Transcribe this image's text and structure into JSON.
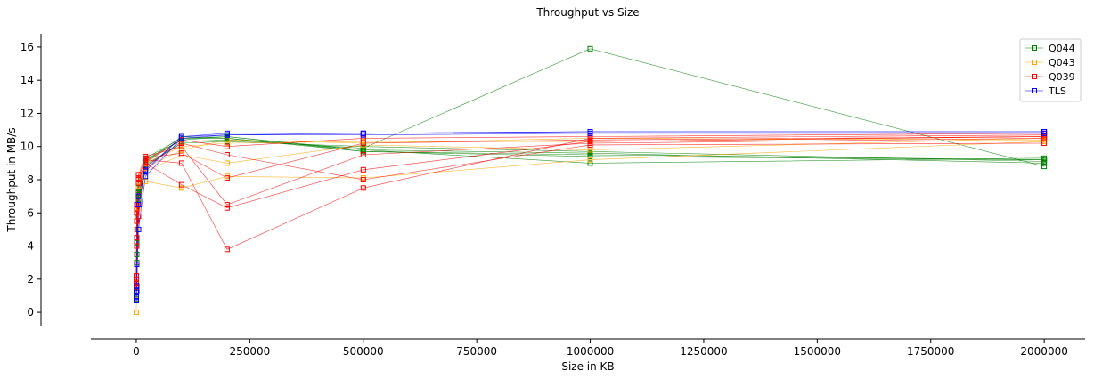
{
  "chart_data": {
    "type": "line",
    "title": "Throughput vs Size",
    "xlabel": "Size in KB",
    "ylabel": "Throughput in MB/s",
    "xlim": [
      -100000,
      2090000
    ],
    "ylim": [
      -0.8,
      16.8
    ],
    "x_ticks": [
      0,
      250000,
      500000,
      750000,
      1000000,
      1250000,
      1500000,
      1750000,
      2000000
    ],
    "x_tick_labels": [
      "0",
      "250000",
      "500000",
      "750000",
      "1000000",
      "1250000",
      "1500000",
      "1750000",
      "2000000"
    ],
    "y_ticks": [
      0,
      2,
      4,
      6,
      8,
      10,
      12,
      14,
      16
    ],
    "y_tick_labels": [
      "0",
      "2",
      "4",
      "6",
      "8",
      "10",
      "12",
      "14",
      "16"
    ],
    "grid": false,
    "legend_position": "top-right",
    "x": [
      10,
      1000,
      5000,
      20000,
      100000,
      200000,
      500000,
      1000000,
      2000000
    ],
    "series": [
      {
        "name": "Q044",
        "color": "#008000",
        "marker": "square",
        "runs": [
          [
            0.9,
            3.0,
            6.5,
            9.0,
            10.5,
            10.5,
            9.7,
            9.4,
            9.2
          ],
          [
            1.2,
            4.5,
            7.0,
            9.2,
            10.4,
            10.6,
            9.8,
            9.6,
            9.0
          ],
          [
            1.5,
            5.0,
            7.5,
            8.8,
            10.3,
            10.4,
            9.9,
            15.9,
            8.8
          ],
          [
            1.0,
            4.0,
            7.2,
            9.1,
            10.6,
            10.5,
            9.8,
            9.0,
            9.3
          ],
          [
            0.8,
            3.5,
            6.8,
            8.9,
            10.2,
            10.3,
            10.0,
            9.7,
            9.1
          ],
          [
            1.3,
            4.2,
            7.1,
            9.3,
            10.5,
            10.6,
            9.7,
            9.5,
            9.2
          ]
        ]
      },
      {
        "name": "Q043",
        "color": "#FFA500",
        "marker": "square",
        "runs": [
          [
            0.0,
            4.0,
            6.3,
            7.9,
            7.5,
            8.2,
            8.1,
            9.2,
            10.3
          ],
          [
            1.5,
            5.5,
            8.0,
            8.5,
            9.5,
            9.0,
            10.1,
            9.8,
            10.5
          ],
          [
            2.0,
            6.0,
            8.3,
            9.0,
            10.0,
            10.2,
            10.3,
            10.3,
            10.6
          ],
          [
            1.0,
            5.0,
            7.6,
            8.7,
            9.8,
            10.4,
            10.2,
            10.5,
            10.4
          ]
        ]
      },
      {
        "name": "Q039",
        "color": "#FF0000",
        "marker": "square",
        "runs": [
          [
            1.6,
            4.0,
            5.8,
            9.2,
            9.0,
            3.8,
            7.5,
            10.5,
            10.7
          ],
          [
            1.8,
            6.0,
            8.0,
            9.0,
            7.7,
            6.3,
            8.6,
            10.3,
            10.6
          ],
          [
            2.0,
            6.5,
            8.3,
            9.4,
            10.0,
            6.5,
            9.5,
            10.2,
            10.5
          ],
          [
            1.7,
            5.5,
            7.8,
            9.1,
            10.4,
            10.0,
            10.5,
            10.6,
            10.8
          ],
          [
            2.2,
            6.2,
            8.1,
            9.3,
            9.6,
            8.1,
            10.2,
            10.4,
            10.6
          ],
          [
            1.5,
            4.5,
            7.0,
            8.8,
            10.2,
            9.5,
            8.0,
            10.1,
            10.2
          ]
        ]
      },
      {
        "name": "TLS",
        "color": "#0000FF",
        "marker": "square",
        "runs": [
          [
            0.7,
            1.3,
            5.0,
            8.2,
            10.5,
            10.7,
            10.8,
            10.9,
            10.9
          ],
          [
            1.2,
            1.6,
            6.5,
            8.6,
            10.6,
            10.8,
            10.8,
            10.9,
            10.9
          ],
          [
            0.9,
            2.9,
            7.0,
            8.5,
            10.6,
            10.7,
            10.7,
            10.8,
            10.8
          ]
        ]
      }
    ]
  }
}
